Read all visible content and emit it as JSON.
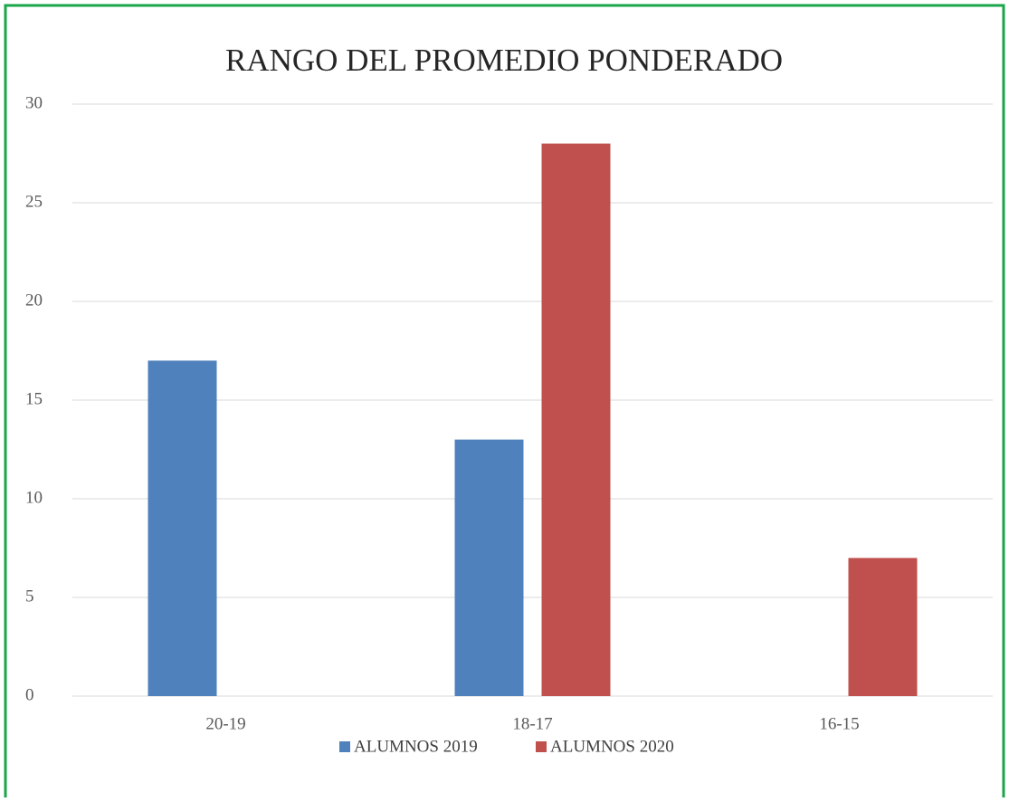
{
  "chart_data": {
    "type": "bar",
    "title": "RANGO DEL PROMEDIO PONDERADO",
    "categories": [
      "20-19",
      "18-17",
      "16-15"
    ],
    "series": [
      {
        "name": "ALUMNOS 2019",
        "color": "#4f81bd",
        "values": [
          17,
          13,
          0
        ]
      },
      {
        "name": "ALUMNOS 2020",
        "color": "#c0504d",
        "values": [
          0,
          28,
          7
        ]
      }
    ],
    "ylim": [
      0,
      30
    ],
    "yticks": [
      0,
      5,
      10,
      15,
      20,
      25,
      30
    ],
    "grid": true,
    "legend": "bottom"
  }
}
